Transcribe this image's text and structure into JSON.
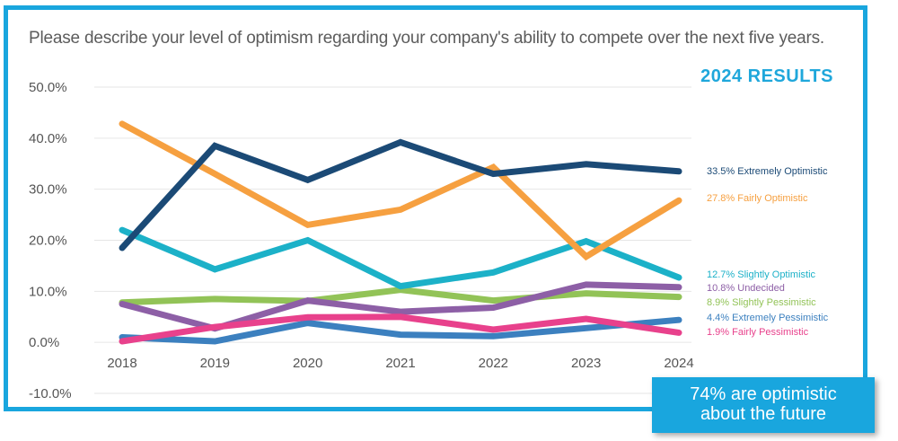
{
  "header": {
    "question": "Please describe your level of optimism regarding your company's ability to compete over the next five years.",
    "results_title": "2024 RESULTS"
  },
  "callout": {
    "line1": "74% are optimistic",
    "line2": "about the future"
  },
  "colors": {
    "frame": "#19a6de",
    "grid": "#e6e6e6"
  },
  "chart_data": {
    "type": "line",
    "x": [
      "2018",
      "2019",
      "2020",
      "2021",
      "2022",
      "2023",
      "2024"
    ],
    "ylim": [
      -10,
      50
    ],
    "yticks": [
      {
        "value": 50,
        "label": "50.0%"
      },
      {
        "value": 40,
        "label": "40.0%"
      },
      {
        "value": 30,
        "label": "30.0%"
      },
      {
        "value": 20,
        "label": "20.0%"
      },
      {
        "value": 10,
        "label": "10.0%"
      },
      {
        "value": 0,
        "label": "0.0%"
      },
      {
        "value": -10,
        "label": "-10.0%"
      }
    ],
    "grid": true,
    "series": [
      {
        "name": "Extremely Optimistic",
        "label": "33.5% Extremely Optimistic",
        "color": "#1b4a76",
        "values": [
          18.5,
          38.5,
          31.8,
          39.2,
          33.0,
          34.9,
          33.5
        ]
      },
      {
        "name": "Fairly Optimistic",
        "label": "27.8% Fairly Optimistic",
        "color": "#f6a040",
        "values": [
          42.8,
          33.0,
          23.0,
          26.0,
          34.3,
          16.8,
          27.8
        ]
      },
      {
        "name": "Slightly Optimistic",
        "label": "12.7% Slightly Optimistic",
        "color": "#1cb1c8",
        "values": [
          22.0,
          14.3,
          20.0,
          11.0,
          13.7,
          19.8,
          12.7
        ]
      },
      {
        "name": "Undecided",
        "label": "10.8% Undecided",
        "color": "#8d5fa6",
        "values": [
          7.5,
          2.7,
          8.2,
          6.0,
          6.8,
          11.3,
          10.8
        ]
      },
      {
        "name": "Slightly Pessimistic",
        "label": "8.9% Slightly Pessimistic",
        "color": "#92c357",
        "values": [
          7.8,
          8.5,
          8.1,
          10.3,
          8.2,
          9.6,
          8.9
        ]
      },
      {
        "name": "Extremely Pessimistic",
        "label": "4.4% Extremely Pessimistic",
        "color": "#3c80bf",
        "values": [
          1.0,
          0.2,
          3.8,
          1.5,
          1.2,
          2.8,
          4.4
        ]
      },
      {
        "name": "Fairly Pessimistic",
        "label": "1.9% Fairly Pessimistic",
        "color": "#e8418c",
        "values": [
          0.2,
          3.0,
          4.9,
          5.0,
          2.5,
          4.6,
          1.9
        ]
      }
    ]
  }
}
